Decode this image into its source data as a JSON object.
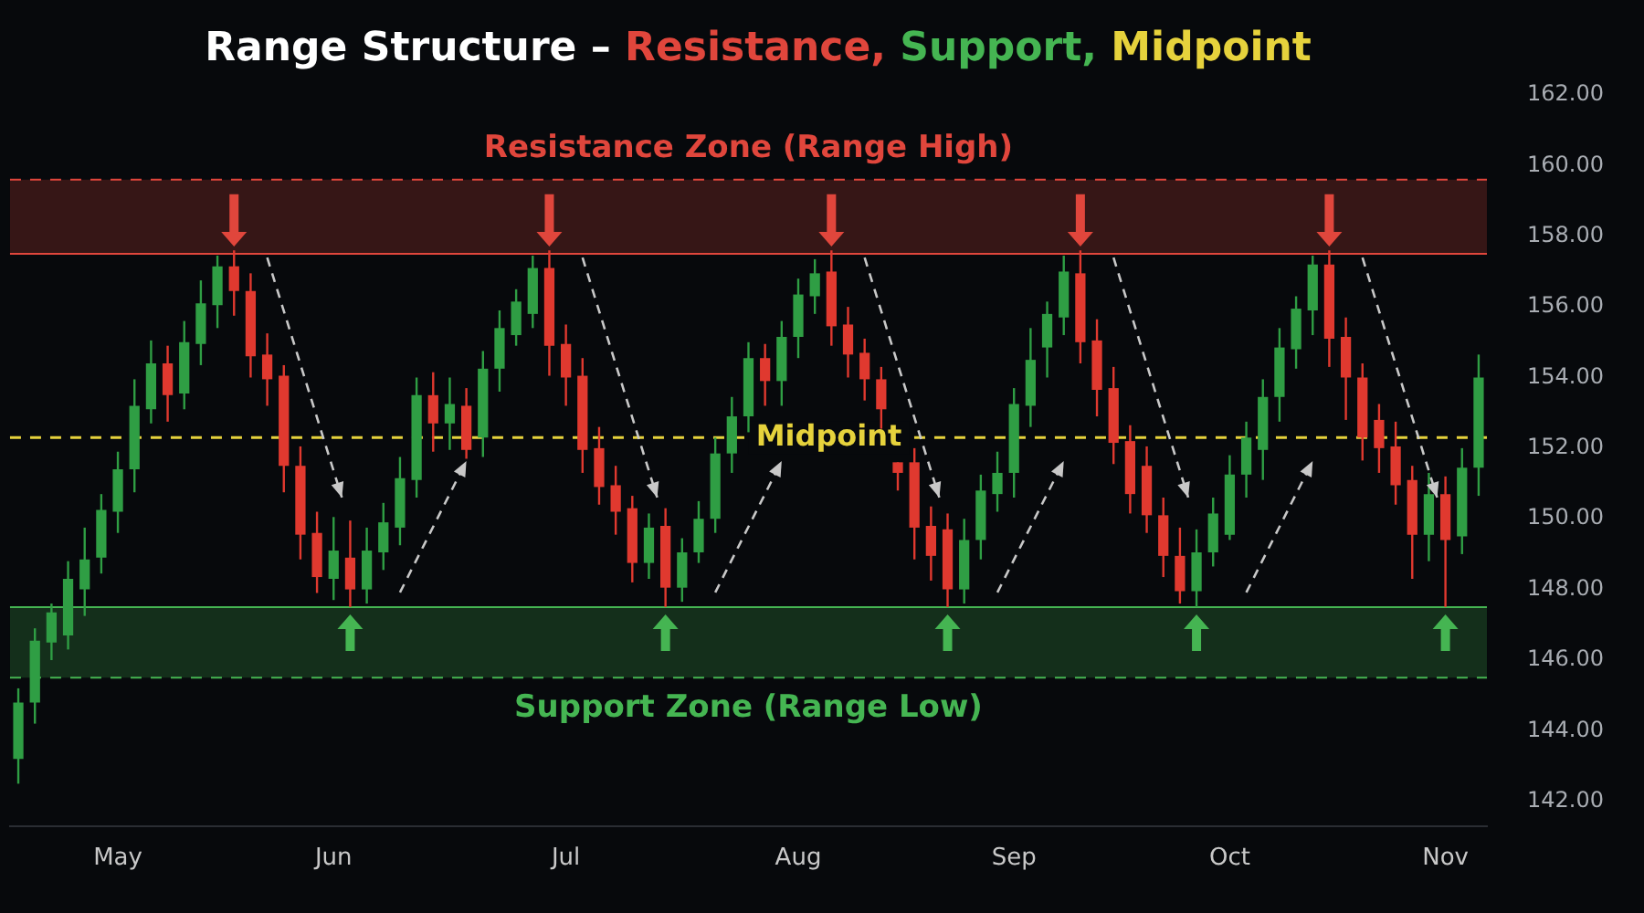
{
  "chart_data": {
    "type": "candlestick",
    "title": "Range Structure – Resistance, Support, Midpoint",
    "categories": [
      null,
      null,
      null,
      null,
      null,
      null,
      "May",
      null,
      null,
      null,
      null,
      null,
      null,
      null,
      null,
      null,
      null,
      null,
      null,
      "Jun",
      null,
      null,
      null,
      null,
      null,
      null,
      null,
      null,
      null,
      null,
      null,
      null,
      null,
      "Jul",
      null,
      null,
      null,
      null,
      null,
      null,
      null,
      null,
      null,
      null,
      null,
      null,
      null,
      "Aug",
      null,
      null,
      null,
      null,
      null,
      null,
      null,
      null,
      null,
      null,
      null,
      null,
      "Sep",
      null,
      null,
      null,
      null,
      null,
      null,
      null,
      null,
      null,
      null,
      null,
      null,
      "Oct",
      null,
      null,
      null,
      null,
      null,
      null,
      null,
      null,
      null,
      null,
      null,
      null,
      "Nov",
      null,
      null
    ],
    "ohlc": [
      [
        143.2,
        145.2,
        142.5,
        144.8
      ],
      [
        144.8,
        146.9,
        144.2,
        146.55
      ],
      [
        146.5,
        147.6,
        146.0,
        147.35
      ],
      [
        146.7,
        148.8,
        146.3,
        148.3
      ],
      [
        148.0,
        149.75,
        147.25,
        148.85
      ],
      [
        148.9,
        150.7,
        148.45,
        150.25
      ],
      [
        150.2,
        151.9,
        149.6,
        151.4
      ],
      [
        151.4,
        153.95,
        150.75,
        153.2
      ],
      [
        153.1,
        155.05,
        152.7,
        154.4
      ],
      [
        154.4,
        154.9,
        152.75,
        153.5
      ],
      [
        153.55,
        155.6,
        153.1,
        155.0
      ],
      [
        154.95,
        156.75,
        154.35,
        156.1
      ],
      [
        156.05,
        157.45,
        155.4,
        157.15
      ],
      [
        157.15,
        157.6,
        155.75,
        156.45
      ],
      [
        156.45,
        156.95,
        154.0,
        154.6
      ],
      [
        154.65,
        155.25,
        153.2,
        153.95
      ],
      [
        154.05,
        154.35,
        150.75,
        151.5
      ],
      [
        151.5,
        152.05,
        148.85,
        149.55
      ],
      [
        149.6,
        150.2,
        147.9,
        148.35
      ],
      [
        148.3,
        150.05,
        147.7,
        149.1
      ],
      [
        148.9,
        149.95,
        147.5,
        148.0
      ],
      [
        148.0,
        149.75,
        147.6,
        149.1
      ],
      [
        149.05,
        150.45,
        148.55,
        149.9
      ],
      [
        149.75,
        151.75,
        149.25,
        151.15
      ],
      [
        151.1,
        154.0,
        150.6,
        153.5
      ],
      [
        153.5,
        154.15,
        151.9,
        152.7
      ],
      [
        152.7,
        154.0,
        151.95,
        153.25
      ],
      [
        153.2,
        153.7,
        151.7,
        151.95
      ],
      [
        152.3,
        154.75,
        151.75,
        154.25
      ],
      [
        154.25,
        155.9,
        153.6,
        155.4
      ],
      [
        155.2,
        156.5,
        154.9,
        156.15
      ],
      [
        155.8,
        157.45,
        155.4,
        157.1
      ],
      [
        157.1,
        157.6,
        154.05,
        154.9
      ],
      [
        154.95,
        155.5,
        153.2,
        154.0
      ],
      [
        154.05,
        154.55,
        151.3,
        151.95
      ],
      [
        152.0,
        152.6,
        150.4,
        150.9
      ],
      [
        150.95,
        151.5,
        149.55,
        150.2
      ],
      [
        150.3,
        150.65,
        148.2,
        148.75
      ],
      [
        148.75,
        150.15,
        148.3,
        149.75
      ],
      [
        149.8,
        150.3,
        147.5,
        148.05
      ],
      [
        148.05,
        149.45,
        147.65,
        149.05
      ],
      [
        149.05,
        150.5,
        148.75,
        150.0
      ],
      [
        150.0,
        152.3,
        149.6,
        151.85
      ],
      [
        151.85,
        153.45,
        151.3,
        152.9
      ],
      [
        152.9,
        155.0,
        152.45,
        154.55
      ],
      [
        154.55,
        154.95,
        153.2,
        153.9
      ],
      [
        153.9,
        155.6,
        153.2,
        155.15
      ],
      [
        155.15,
        156.8,
        154.55,
        156.35
      ],
      [
        156.3,
        157.35,
        155.8,
        156.95
      ],
      [
        157.0,
        157.6,
        154.9,
        155.45
      ],
      [
        155.5,
        156.0,
        154.0,
        154.65
      ],
      [
        154.7,
        155.1,
        153.35,
        153.95
      ],
      [
        153.95,
        154.3,
        152.55,
        153.1
      ],
      [
        151.6,
        151.6,
        150.8,
        151.3
      ],
      [
        151.6,
        152.0,
        148.85,
        149.75
      ],
      [
        149.8,
        150.35,
        148.25,
        148.95
      ],
      [
        149.7,
        150.15,
        147.5,
        148.0
      ],
      [
        148.0,
        150.0,
        147.6,
        149.4
      ],
      [
        149.4,
        151.25,
        148.85,
        150.8
      ],
      [
        150.7,
        151.9,
        150.2,
        151.3
      ],
      [
        151.3,
        153.7,
        150.6,
        153.25
      ],
      [
        153.2,
        155.4,
        152.6,
        154.5
      ],
      [
        154.85,
        156.15,
        154.0,
        155.8
      ],
      [
        155.7,
        157.45,
        155.2,
        157.0
      ],
      [
        156.95,
        157.6,
        154.4,
        155.0
      ],
      [
        155.05,
        155.65,
        152.9,
        153.65
      ],
      [
        153.7,
        154.3,
        151.55,
        152.15
      ],
      [
        152.2,
        152.65,
        150.15,
        150.7
      ],
      [
        151.5,
        152.05,
        149.6,
        150.1
      ],
      [
        150.1,
        150.6,
        148.35,
        148.95
      ],
      [
        148.95,
        149.75,
        147.6,
        147.95
      ],
      [
        147.95,
        149.7,
        147.5,
        149.05
      ],
      [
        149.05,
        150.6,
        148.65,
        150.15
      ],
      [
        149.55,
        151.8,
        149.4,
        151.25
      ],
      [
        151.25,
        152.75,
        150.6,
        152.3
      ],
      [
        151.95,
        153.95,
        151.1,
        153.45
      ],
      [
        153.45,
        155.4,
        152.75,
        154.85
      ],
      [
        154.8,
        156.3,
        154.25,
        155.95
      ],
      [
        155.9,
        157.45,
        155.2,
        157.2
      ],
      [
        157.2,
        157.6,
        154.3,
        155.1
      ],
      [
        155.15,
        155.7,
        152.8,
        154.0
      ],
      [
        154.0,
        154.4,
        151.65,
        152.3
      ],
      [
        152.8,
        153.25,
        151.3,
        152.0
      ],
      [
        152.05,
        152.75,
        150.4,
        150.95
      ],
      [
        151.1,
        151.5,
        148.3,
        149.55
      ],
      [
        149.55,
        151.3,
        148.8,
        150.7
      ],
      [
        150.7,
        151.2,
        147.5,
        149.4
      ],
      [
        149.5,
        152.0,
        149.0,
        151.45
      ],
      [
        151.45,
        154.65,
        150.65,
        154.0
      ]
    ],
    "colors": [
      "#2f9e44",
      "#2f9e44",
      "#2f9e44",
      "#2f9e44",
      "#2f9e44",
      "#2f9e44",
      "#2f9e44",
      "#2f9e44",
      "#2f9e44",
      "#e0392f",
      "#2f9e44",
      "#2f9e44",
      "#2f9e44",
      "#e0392f",
      "#e0392f",
      "#e0392f",
      "#e0392f",
      "#e0392f",
      "#e0392f",
      "#2f9e44",
      "#e0392f",
      "#2f9e44",
      "#2f9e44",
      "#2f9e44",
      "#2f9e44",
      "#e0392f",
      "#2f9e44",
      "#e0392f",
      "#2f9e44",
      "#2f9e44",
      "#2f9e44",
      "#2f9e44",
      "#e0392f",
      "#e0392f",
      "#e0392f",
      "#e0392f",
      "#e0392f",
      "#e0392f",
      "#2f9e44",
      "#e0392f",
      "#2f9e44",
      "#2f9e44",
      "#2f9e44",
      "#2f9e44",
      "#2f9e44",
      "#e0392f",
      "#2f9e44",
      "#2f9e44",
      "#2f9e44",
      "#e0392f",
      "#e0392f",
      "#e0392f",
      "#e0392f",
      "#e0392f",
      "#e0392f",
      "#e0392f",
      "#e0392f",
      "#2f9e44",
      "#2f9e44",
      "#2f9e44",
      "#2f9e44",
      "#2f9e44",
      "#2f9e44",
      "#2f9e44",
      "#e0392f",
      "#e0392f",
      "#e0392f",
      "#e0392f",
      "#e0392f",
      "#e0392f",
      "#e0392f",
      "#2f9e44",
      "#2f9e44",
      "#2f9e44",
      "#2f9e44",
      "#2f9e44",
      "#2f9e44",
      "#2f9e44",
      "#2f9e44",
      "#e0392f",
      "#e0392f",
      "#e0392f",
      "#e0392f",
      "#e0392f",
      "#e0392f",
      "#2f9e44",
      "#e0392f",
      "#2f9e44",
      "#2f9e44"
    ],
    "ylim": [
      141.3,
      162
    ],
    "yticks": [
      {
        "value": 142,
        "label": "142.00"
      },
      {
        "value": 144,
        "label": "144.00"
      },
      {
        "value": 146,
        "label": "146.00"
      },
      {
        "value": 148,
        "label": "148.00"
      },
      {
        "value": 150,
        "label": "150.00"
      },
      {
        "value": 152,
        "label": "152.00"
      },
      {
        "value": 154,
        "label": "154.00"
      },
      {
        "value": 156,
        "label": "156.00"
      },
      {
        "value": 158,
        "label": "158.00"
      },
      {
        "value": 160,
        "label": "160.00"
      },
      {
        "value": 162,
        "label": "162.00"
      }
    ],
    "bands": [
      {
        "axis": "y",
        "from": 157.5,
        "to": 159.6,
        "label": "Resistance Zone (Range High)",
        "color": "#e0463c"
      },
      {
        "axis": "y",
        "from": 145.5,
        "to": 147.5,
        "label": "Support Zone (Range Low)",
        "color": "#45b552"
      }
    ],
    "ref_lines": [
      {
        "axis": "y",
        "value": 152.3,
        "label": "Midpoint",
        "color": "#e6d23c",
        "line_style": "dashed"
      },
      {
        "axis": "y",
        "value": 159.6,
        "color": "#e0463c",
        "line_style": "dashed"
      },
      {
        "axis": "y",
        "value": 157.5,
        "color": "#e0463c",
        "line_style": "solid"
      },
      {
        "axis": "y",
        "value": 147.5,
        "color": "#45b552",
        "line_style": "solid"
      },
      {
        "axis": "y",
        "value": 145.5,
        "color": "#45b552",
        "line_style": "dashed"
      }
    ]
  }
}
